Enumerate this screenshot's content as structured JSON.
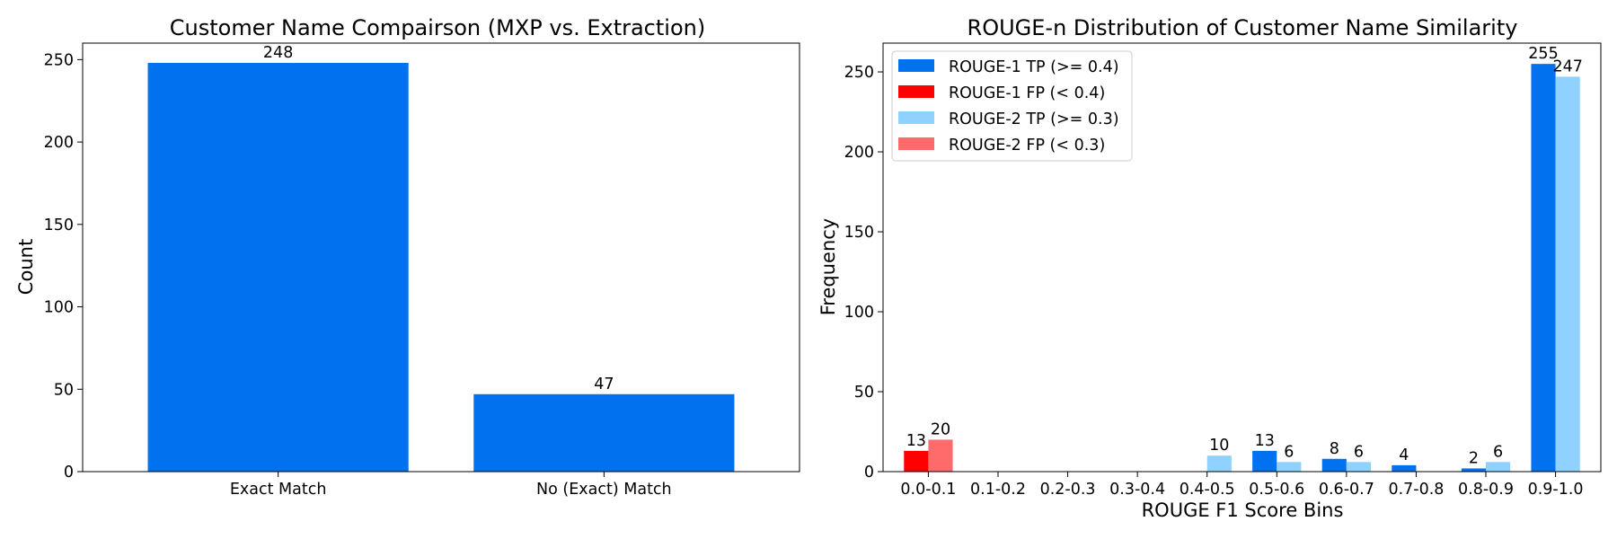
{
  "chart_data": [
    {
      "type": "bar",
      "title": "Customer Name Compairson (MXP vs. Extraction)",
      "xlabel": "",
      "ylabel": "Count",
      "categories": [
        "Exact Match",
        "No (Exact) Match"
      ],
      "values": [
        248,
        47
      ],
      "data_labels": [
        "248",
        "47"
      ],
      "ylim": [
        0,
        260
      ],
      "yticks": [
        0,
        50,
        100,
        150,
        200,
        250
      ],
      "grid": false,
      "colors": [
        "#0271ef"
      ]
    },
    {
      "type": "bar",
      "title": "ROUGE-n Distribution of Customer Name Similarity",
      "xlabel": "ROUGE F1 Score Bins",
      "ylabel": "Frequency",
      "categories": [
        "0.0-0.1",
        "0.1-0.2",
        "0.2-0.3",
        "0.3-0.4",
        "0.4-0.5",
        "0.5-0.6",
        "0.6-0.7",
        "0.7-0.8",
        "0.8-0.9",
        "0.9-1.0"
      ],
      "ylim": [
        0,
        268
      ],
      "yticks": [
        0,
        50,
        100,
        150,
        200,
        250
      ],
      "grid": false,
      "legend_position": "top-left",
      "legend": [
        {
          "label": "ROUGE-1 TP (>= 0.4)",
          "color": "#0271ef"
        },
        {
          "label": "ROUGE-1 FP (< 0.4)",
          "color": "#ff0000"
        },
        {
          "label": "ROUGE-2 TP (>= 0.3)",
          "color": "#8fd2ff"
        },
        {
          "label": "ROUGE-2 FP (< 0.3)",
          "color": "#ff6b6b"
        }
      ],
      "series": [
        {
          "name": "ROUGE-1",
          "values": [
            13,
            0,
            0,
            0,
            0,
            13,
            8,
            4,
            2,
            255
          ],
          "data_labels": [
            "13",
            "",
            "",
            "",
            "",
            "13",
            "8",
            "4",
            "2",
            "255"
          ],
          "colors": [
            "#ff0000",
            "#ff0000",
            "#ff0000",
            "#ff0000",
            "#0271ef",
            "#0271ef",
            "#0271ef",
            "#0271ef",
            "#0271ef",
            "#0271ef"
          ]
        },
        {
          "name": "ROUGE-2",
          "values": [
            20,
            0,
            0,
            0,
            10,
            6,
            6,
            0,
            6,
            247
          ],
          "data_labels": [
            "20",
            "",
            "",
            "",
            "10",
            "6",
            "6",
            "",
            "6",
            "247"
          ],
          "colors": [
            "#ff6b6b",
            "#ff6b6b",
            "#ff6b6b",
            "#8fd2ff",
            "#8fd2ff",
            "#8fd2ff",
            "#8fd2ff",
            "#8fd2ff",
            "#8fd2ff",
            "#8fd2ff"
          ]
        }
      ]
    }
  ]
}
